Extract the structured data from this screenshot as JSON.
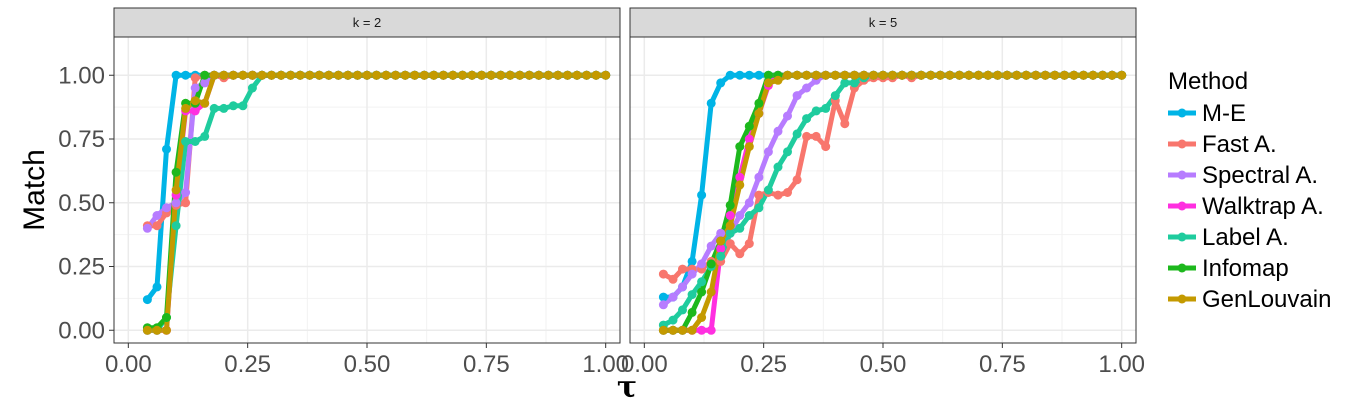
{
  "chart_data": {
    "type": "line",
    "xlabel": "τ",
    "ylabel": "Match",
    "xlim": [
      0,
      1
    ],
    "ylim": [
      0,
      1
    ],
    "x_ticks": [
      "0.00",
      "0.25",
      "0.50",
      "0.75",
      "1.00"
    ],
    "y_ticks": [
      "0.00",
      "0.25",
      "0.50",
      "0.75",
      "1.00"
    ],
    "grid": true,
    "legend_position": "right",
    "legend_title": "Method",
    "x": [
      0.04,
      0.06,
      0.08,
      0.1,
      0.12,
      0.14,
      0.16,
      0.18,
      0.2,
      0.22,
      0.24,
      0.26,
      0.28,
      0.3,
      0.32,
      0.34,
      0.36,
      0.38,
      0.4,
      0.42,
      0.44,
      0.46,
      0.48,
      0.5,
      0.52,
      0.54,
      0.56,
      0.58,
      0.6,
      0.62,
      0.64,
      0.66,
      0.68,
      0.7,
      0.72,
      0.74,
      0.76,
      0.78,
      0.8,
      0.82,
      0.84,
      0.86,
      0.88,
      0.9,
      0.92,
      0.94,
      0.96,
      0.98,
      1.0
    ],
    "series_meta": [
      {
        "name": "M-E",
        "color": "#00B4E6"
      },
      {
        "name": "Fast A.",
        "color": "#F8766D"
      },
      {
        "name": "Spectral A.",
        "color": "#B77CFF"
      },
      {
        "name": "Walktrap A.",
        "color": "#FF2FE0"
      },
      {
        "name": "Label A.",
        "color": "#1FCC9E"
      },
      {
        "name": "Infomap",
        "color": "#1DB81D"
      },
      {
        "name": "GenLouvain",
        "color": "#C49A00"
      }
    ],
    "panels": [
      {
        "strip": "k = 2",
        "series": {
          "M-E": [
            0.12,
            0.17,
            0.71,
            1.0,
            1.0,
            1.0,
            1.0,
            1.0,
            1.0,
            1.0,
            1.0,
            1.0,
            1.0,
            1.0,
            1.0,
            1.0,
            1.0,
            1.0,
            1.0,
            1.0,
            1.0,
            1.0,
            1.0,
            1.0,
            1.0,
            1.0,
            1.0,
            1.0,
            1.0,
            1.0,
            1.0,
            1.0,
            1.0,
            1.0,
            1.0,
            1.0,
            1.0,
            1.0,
            1.0,
            1.0,
            1.0,
            1.0,
            1.0,
            1.0,
            1.0,
            1.0,
            1.0,
            1.0,
            1.0
          ],
          "Fast A.": [
            0.41,
            0.41,
            0.46,
            0.49,
            0.5,
            0.99,
            1.0,
            1.0,
            0.99,
            1.0,
            1.0,
            1.0,
            1.0,
            1.0,
            1.0,
            1.0,
            1.0,
            1.0,
            1.0,
            1.0,
            1.0,
            1.0,
            1.0,
            1.0,
            1.0,
            1.0,
            1.0,
            1.0,
            1.0,
            1.0,
            1.0,
            1.0,
            1.0,
            1.0,
            1.0,
            1.0,
            1.0,
            1.0,
            1.0,
            1.0,
            1.0,
            1.0,
            1.0,
            1.0,
            1.0,
            1.0,
            1.0,
            1.0,
            1.0
          ],
          "Spectral A.": [
            0.4,
            0.45,
            0.48,
            0.5,
            0.54,
            0.95,
            0.97,
            1.0,
            1.0,
            1.0,
            1.0,
            1.0,
            1.0,
            1.0,
            1.0,
            1.0,
            1.0,
            1.0,
            1.0,
            1.0,
            1.0,
            1.0,
            1.0,
            1.0,
            1.0,
            1.0,
            1.0,
            1.0,
            1.0,
            1.0,
            1.0,
            1.0,
            1.0,
            1.0,
            1.0,
            1.0,
            1.0,
            1.0,
            1.0,
            1.0,
            1.0,
            1.0,
            1.0,
            1.0,
            1.0,
            1.0,
            1.0,
            1.0,
            1.0
          ],
          "Walktrap A.": [
            0.0,
            0.0,
            0.0,
            0.53,
            0.86,
            0.86,
            0.89,
            1.0,
            1.0,
            1.0,
            1.0,
            1.0,
            1.0,
            1.0,
            1.0,
            1.0,
            1.0,
            1.0,
            1.0,
            1.0,
            1.0,
            1.0,
            1.0,
            1.0,
            1.0,
            1.0,
            1.0,
            1.0,
            1.0,
            1.0,
            1.0,
            1.0,
            1.0,
            1.0,
            1.0,
            1.0,
            1.0,
            1.0,
            1.0,
            1.0,
            1.0,
            1.0,
            1.0,
            1.0,
            1.0,
            1.0,
            1.0,
            1.0,
            1.0
          ],
          "Label A.": [
            0.0,
            0.0,
            0.05,
            0.41,
            0.74,
            0.74,
            0.76,
            0.87,
            0.87,
            0.88,
            0.88,
            0.95,
            1.0,
            1.0,
            1.0,
            1.0,
            1.0,
            1.0,
            1.0,
            1.0,
            1.0,
            1.0,
            1.0,
            1.0,
            1.0,
            1.0,
            1.0,
            1.0,
            1.0,
            1.0,
            1.0,
            1.0,
            1.0,
            1.0,
            1.0,
            1.0,
            1.0,
            1.0,
            1.0,
            1.0,
            1.0,
            1.0,
            1.0,
            1.0,
            1.0,
            1.0,
            1.0,
            1.0,
            1.0
          ],
          "Infomap": [
            0.01,
            0.01,
            0.05,
            0.62,
            0.89,
            0.89,
            1.0,
            1.0,
            1.0,
            1.0,
            1.0,
            1.0,
            1.0,
            1.0,
            1.0,
            1.0,
            1.0,
            1.0,
            1.0,
            1.0,
            1.0,
            1.0,
            1.0,
            1.0,
            1.0,
            1.0,
            1.0,
            1.0,
            1.0,
            1.0,
            1.0,
            1.0,
            1.0,
            1.0,
            1.0,
            1.0,
            1.0,
            1.0,
            1.0,
            1.0,
            1.0,
            1.0,
            1.0,
            1.0,
            1.0,
            1.0,
            1.0,
            1.0,
            1.0
          ],
          "GenLouvain": [
            0.0,
            0.0,
            0.0,
            0.55,
            0.87,
            0.9,
            0.89,
            1.0,
            1.0,
            1.0,
            1.0,
            1.0,
            1.0,
            1.0,
            1.0,
            1.0,
            1.0,
            1.0,
            1.0,
            1.0,
            1.0,
            1.0,
            1.0,
            1.0,
            1.0,
            1.0,
            1.0,
            1.0,
            1.0,
            1.0,
            1.0,
            1.0,
            1.0,
            1.0,
            1.0,
            1.0,
            1.0,
            1.0,
            1.0,
            1.0,
            1.0,
            1.0,
            1.0,
            1.0,
            1.0,
            1.0,
            1.0,
            1.0,
            1.0
          ]
        }
      },
      {
        "strip": "k = 5",
        "series": {
          "M-E": [
            0.13,
            0.13,
            0.17,
            0.27,
            0.53,
            0.89,
            0.97,
            1.0,
            1.0,
            1.0,
            1.0,
            1.0,
            1.0,
            1.0,
            1.0,
            1.0,
            1.0,
            1.0,
            1.0,
            1.0,
            1.0,
            1.0,
            1.0,
            1.0,
            1.0,
            1.0,
            1.0,
            1.0,
            1.0,
            1.0,
            1.0,
            1.0,
            1.0,
            1.0,
            1.0,
            1.0,
            1.0,
            1.0,
            1.0,
            1.0,
            1.0,
            1.0,
            1.0,
            1.0,
            1.0,
            1.0,
            1.0,
            1.0,
            1.0
          ],
          "Fast A.": [
            0.22,
            0.2,
            0.24,
            0.24,
            0.24,
            0.27,
            0.27,
            0.34,
            0.3,
            0.34,
            0.53,
            0.54,
            0.53,
            0.54,
            0.59,
            0.76,
            0.76,
            0.72,
            0.9,
            0.81,
            0.95,
            0.98,
            0.99,
            0.99,
            0.99,
            1.0,
            0.99,
            1.0,
            1.0,
            1.0,
            1.0,
            1.0,
            1.0,
            1.0,
            1.0,
            1.0,
            1.0,
            1.0,
            1.0,
            1.0,
            1.0,
            1.0,
            1.0,
            1.0,
            1.0,
            1.0,
            1.0,
            1.0,
            1.0
          ],
          "Spectral A.": [
            0.1,
            0.13,
            0.17,
            0.22,
            0.26,
            0.33,
            0.38,
            0.38,
            0.45,
            0.5,
            0.6,
            0.7,
            0.78,
            0.84,
            0.92,
            0.95,
            0.98,
            1.0,
            1.0,
            1.0,
            1.0,
            1.0,
            1.0,
            1.0,
            1.0,
            1.0,
            1.0,
            1.0,
            1.0,
            1.0,
            1.0,
            1.0,
            1.0,
            1.0,
            1.0,
            1.0,
            1.0,
            1.0,
            1.0,
            1.0,
            1.0,
            1.0,
            1.0,
            1.0,
            1.0,
            1.0,
            1.0,
            1.0,
            1.0
          ],
          "Walktrap A.": [
            0.0,
            0.0,
            0.0,
            0.0,
            0.0,
            0.0,
            0.32,
            0.45,
            0.6,
            0.75,
            0.85,
            0.96,
            1.0,
            1.0,
            1.0,
            1.0,
            1.0,
            1.0,
            1.0,
            1.0,
            1.0,
            1.0,
            1.0,
            1.0,
            1.0,
            1.0,
            1.0,
            1.0,
            1.0,
            1.0,
            1.0,
            1.0,
            1.0,
            1.0,
            1.0,
            1.0,
            1.0,
            1.0,
            1.0,
            1.0,
            1.0,
            1.0,
            1.0,
            1.0,
            1.0,
            1.0,
            1.0,
            1.0,
            1.0
          ],
          "Label A.": [
            0.02,
            0.04,
            0.08,
            0.14,
            0.19,
            0.25,
            0.29,
            0.38,
            0.4,
            0.45,
            0.48,
            0.55,
            0.64,
            0.7,
            0.77,
            0.83,
            0.86,
            0.87,
            0.92,
            0.97,
            0.97,
            0.99,
            1.0,
            1.0,
            1.0,
            1.0,
            1.0,
            1.0,
            1.0,
            1.0,
            1.0,
            1.0,
            1.0,
            1.0,
            1.0,
            1.0,
            1.0,
            1.0,
            1.0,
            1.0,
            1.0,
            1.0,
            1.0,
            1.0,
            1.0,
            1.0,
            1.0,
            1.0,
            1.0
          ],
          "Infomap": [
            0.0,
            0.0,
            0.0,
            0.07,
            0.15,
            0.26,
            0.35,
            0.49,
            0.72,
            0.8,
            0.89,
            1.0,
            1.0,
            1.0,
            1.0,
            1.0,
            1.0,
            1.0,
            1.0,
            1.0,
            1.0,
            1.0,
            1.0,
            1.0,
            1.0,
            1.0,
            1.0,
            1.0,
            1.0,
            1.0,
            1.0,
            1.0,
            1.0,
            1.0,
            1.0,
            1.0,
            1.0,
            1.0,
            1.0,
            1.0,
            1.0,
            1.0,
            1.0,
            1.0,
            1.0,
            1.0,
            1.0,
            1.0,
            1.0
          ],
          "GenLouvain": [
            0.0,
            0.0,
            0.0,
            0.0,
            0.05,
            0.15,
            0.35,
            0.41,
            0.57,
            0.72,
            0.85,
            0.97,
            0.98,
            1.0,
            1.0,
            1.0,
            1.0,
            1.0,
            1.0,
            1.0,
            1.0,
            1.0,
            1.0,
            1.0,
            1.0,
            1.0,
            1.0,
            1.0,
            1.0,
            1.0,
            1.0,
            1.0,
            1.0,
            1.0,
            1.0,
            1.0,
            1.0,
            1.0,
            1.0,
            1.0,
            1.0,
            1.0,
            1.0,
            1.0,
            1.0,
            1.0,
            1.0,
            1.0,
            1.0
          ]
        }
      }
    ]
  }
}
